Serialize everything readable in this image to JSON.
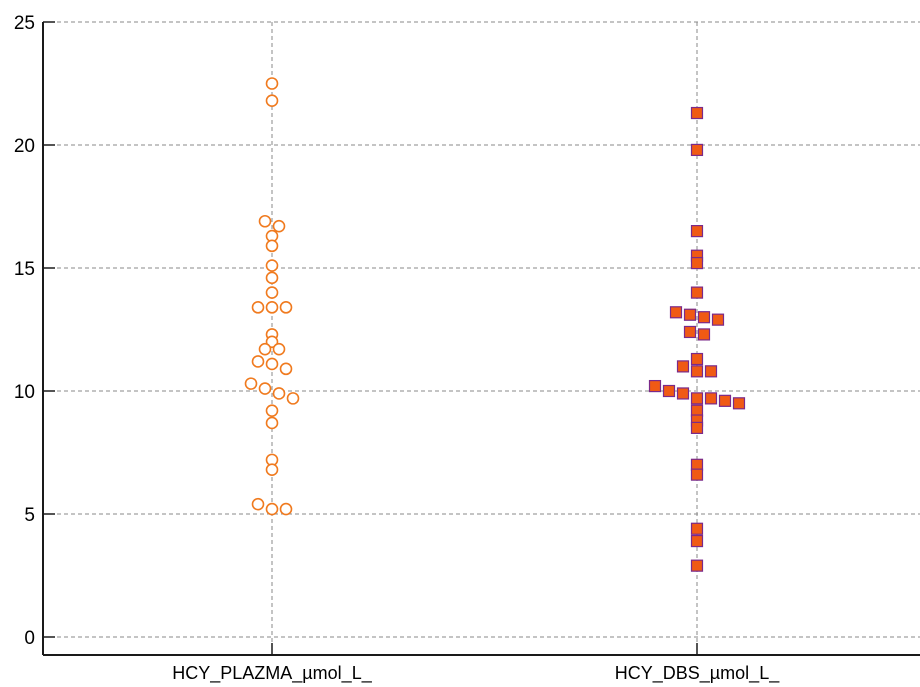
{
  "chart_data": {
    "type": "scatter",
    "title": "",
    "xlabel": "",
    "ylabel": "",
    "ylim": [
      0,
      25
    ],
    "yticks": [
      0,
      5,
      10,
      15,
      20,
      25
    ],
    "ytick_labels": [
      "0",
      "5",
      "10",
      "15",
      "20",
      "25"
    ],
    "grid": true,
    "legend": "none",
    "categories": [
      "HCY_PLAZMA_µmol_L_",
      "HCY_DBS_µmol_L_"
    ],
    "series": [
      {
        "category": "HCY_PLAZMA_µmol_L_",
        "marker": "circle-open",
        "color": "#f07a1e",
        "values": [
          22.5,
          21.8,
          16.9,
          16.7,
          16.3,
          15.9,
          15.1,
          14.6,
          14.0,
          13.4,
          13.4,
          13.4,
          12.3,
          12.0,
          11.7,
          11.7,
          11.2,
          11.1,
          10.9,
          10.3,
          10.1,
          9.9,
          9.7,
          9.2,
          8.7,
          7.2,
          6.8,
          5.4,
          5.2,
          5.2
        ]
      },
      {
        "category": "HCY_DBS_µmol_L_",
        "marker": "square-filled",
        "color": "#f05a14",
        "edge_color": "#7a2a8a",
        "values": [
          21.3,
          19.8,
          16.5,
          15.5,
          15.2,
          14.0,
          13.2,
          13.1,
          13.0,
          12.9,
          12.4,
          12.3,
          11.3,
          11.0,
          10.8,
          10.8,
          10.2,
          10.0,
          9.9,
          9.7,
          9.7,
          9.6,
          9.5,
          9.2,
          8.8,
          8.5,
          7.0,
          6.6,
          4.4,
          3.9,
          2.9
        ]
      }
    ]
  }
}
